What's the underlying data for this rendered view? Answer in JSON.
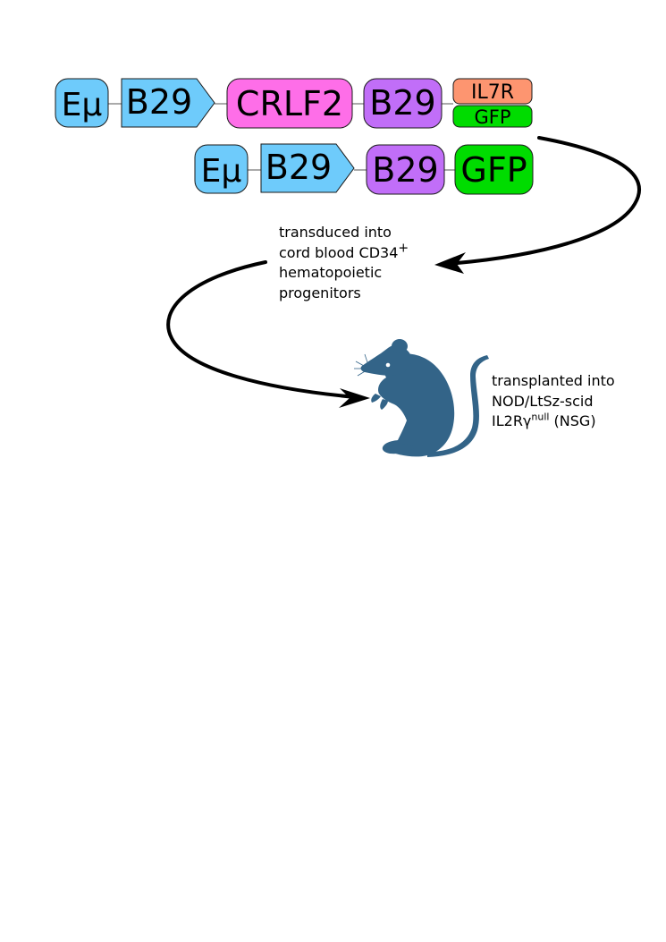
{
  "construct_1": {
    "enhancer": "Eμ",
    "promoter": "B29",
    "gene": "CRLF2",
    "promoter_2": "B29",
    "gene_top": "IL7R",
    "gene_bottom": "GFP"
  },
  "construct_2": {
    "enhancer": "Eμ",
    "promoter": "B29",
    "promoter_2": "B29",
    "reporter": "GFP"
  },
  "step_1": {
    "line1": "transduced into",
    "line2_prefix": "cord blood CD34",
    "line2_sup": "+",
    "line3": "hematopoietic",
    "line4": "progenitors"
  },
  "step_2": {
    "line1": "transplanted into",
    "line2": "NOD/LtSz-scid",
    "line3_prefix": "IL2Rγ",
    "line3_sup": "null",
    "line3_suffix": " (NSG)"
  },
  "colors": {
    "enhancer": "#6ecbfb",
    "promoter": "#6ecbfb",
    "crlf2": "#fe6ee8",
    "b29_purple": "#c16ef8",
    "il7r": "#fd9570",
    "gfp": "#00dc00",
    "mouse": "#336488",
    "arrow": "#000000"
  },
  "icons": {
    "mouse": "mouse-icon"
  }
}
